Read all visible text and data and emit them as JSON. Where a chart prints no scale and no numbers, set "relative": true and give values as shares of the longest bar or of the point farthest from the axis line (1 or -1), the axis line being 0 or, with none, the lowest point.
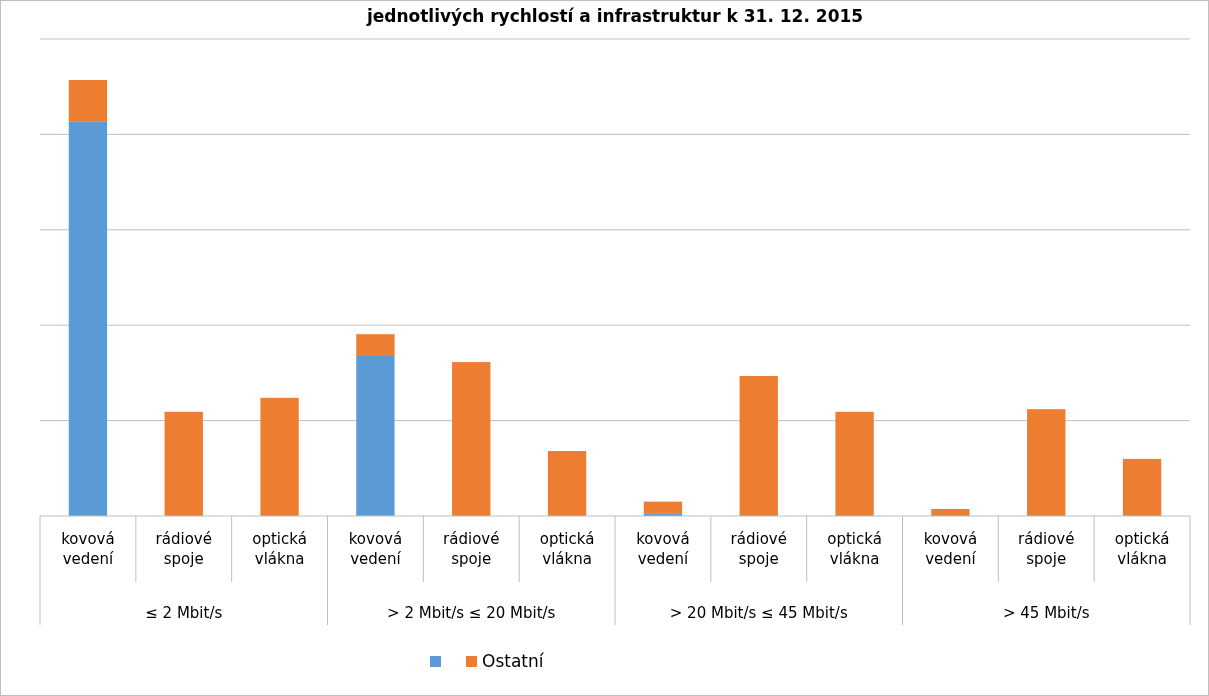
{
  "chart_data": {
    "type": "bar",
    "stacked": true,
    "relative": true,
    "title": "jednotlivých rychlostí a infrastruktur k 31. 12. 2015",
    "categories": [
      "kovová vedení",
      "rádiové spoje",
      "optická vlákna",
      "kovová vedení",
      "rádiové spoje",
      "optická vlákna",
      "kovová vedení",
      "rádiové spoje",
      "optická vlákna",
      "kovová vedení",
      "rádiové spoje",
      "optická vlákna"
    ],
    "annotations": [
      "≤ 2 Mbit/s",
      "> 2 Mbit/s ≤ 20 Mbit/s",
      "> 20 Mbit/s ≤ 45 Mbit/s",
      "> 45 Mbit/s"
    ],
    "series": [
      {
        "color": "#5b9bd5",
        "values": [
          0.904,
          0,
          0,
          0.369,
          0,
          0,
          0.005,
          0,
          0,
          0,
          0,
          0
        ]
      },
      {
        "name": "Ostatní",
        "color": "#ed7d31",
        "values": [
          0.096,
          0.239,
          0.271,
          0.048,
          0.353,
          0.149,
          0.028,
          0.321,
          0.239,
          0.016,
          0.245,
          0.131
        ]
      }
    ],
    "grid": true,
    "legend": "bottom"
  }
}
